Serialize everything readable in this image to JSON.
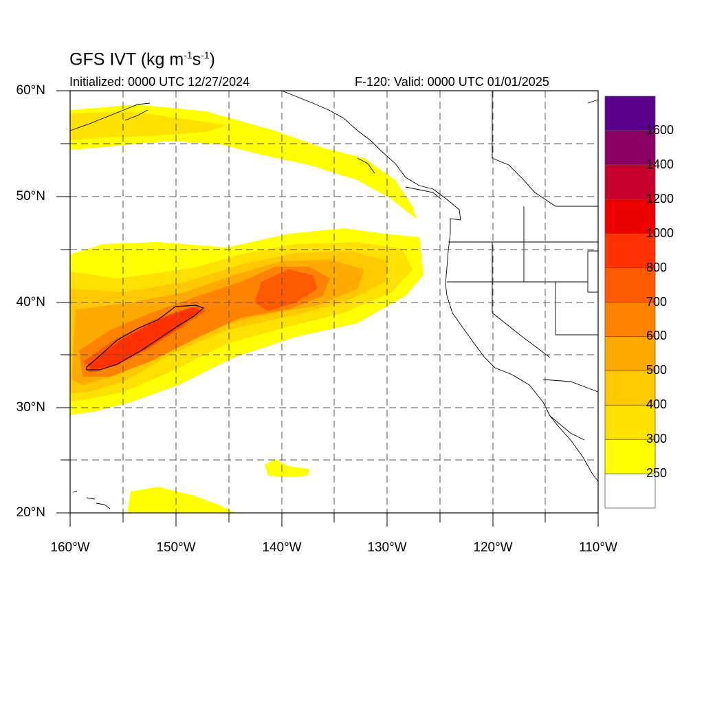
{
  "title": {
    "text": "GFS IVT (kg m",
    "exp1": "-1",
    "mid": "s",
    "exp2": "-1",
    "close": ")"
  },
  "init_label": "Initialized: 0000 UTC 12/27/2024",
  "valid_label": "F-120: Valid: 0000 UTC 01/01/2025",
  "lat_labels": [
    "60°N",
    "50°N",
    "40°N",
    "30°N",
    "20°N"
  ],
  "lon_labels": [
    "160°W",
    "150°W",
    "140°W",
    "130°W",
    "120°W",
    "110°W"
  ],
  "colorbar": {
    "colors": [
      "#ffffff",
      "#ffff00",
      "#ffe100",
      "#ffc800",
      "#ffaa00",
      "#ff8200",
      "#ff5a00",
      "#ff3200",
      "#ee0000",
      "#c8002d",
      "#8c0064",
      "#5a008c"
    ],
    "labels": [
      "250",
      "300",
      "400",
      "500",
      "600",
      "700",
      "800",
      "1000",
      "1200",
      "1400",
      "1600"
    ]
  }
}
